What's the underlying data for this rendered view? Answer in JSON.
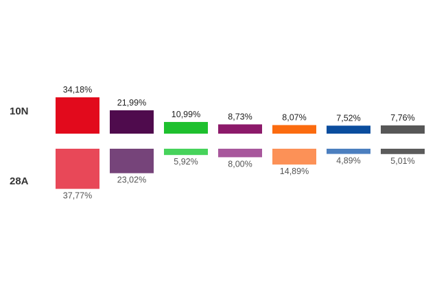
{
  "chart_data": {
    "type": "bar",
    "title": "",
    "xlabel": "",
    "ylabel": "",
    "series": [
      {
        "name": "10N",
        "values": [
          34.18,
          21.99,
          10.99,
          8.73,
          8.07,
          7.52,
          7.76
        ],
        "labels": [
          "34,18%",
          "21,99%",
          "10,99%",
          "8,73%",
          "8,07%",
          "7,52%",
          "7,76%"
        ],
        "colors": [
          "#e20a1c",
          "#4f0b4d",
          "#1ec02e",
          "#8c1a6a",
          "#fb6b0f",
          "#0a4d9e",
          "#575757"
        ]
      },
      {
        "name": "28A",
        "values": [
          37.77,
          23.02,
          5.92,
          8.0,
          14.89,
          4.89,
          5.01
        ],
        "labels": [
          "37,77%",
          "23,02%",
          "5,92%",
          "8,00%",
          "14,89%",
          "4,89%",
          "5,01%"
        ],
        "colors": [
          "#e84858",
          "#76447a",
          "#47d35b",
          "#a8579c",
          "#fc9157",
          "#4c7fbf",
          "#5b5b5b"
        ]
      }
    ]
  }
}
